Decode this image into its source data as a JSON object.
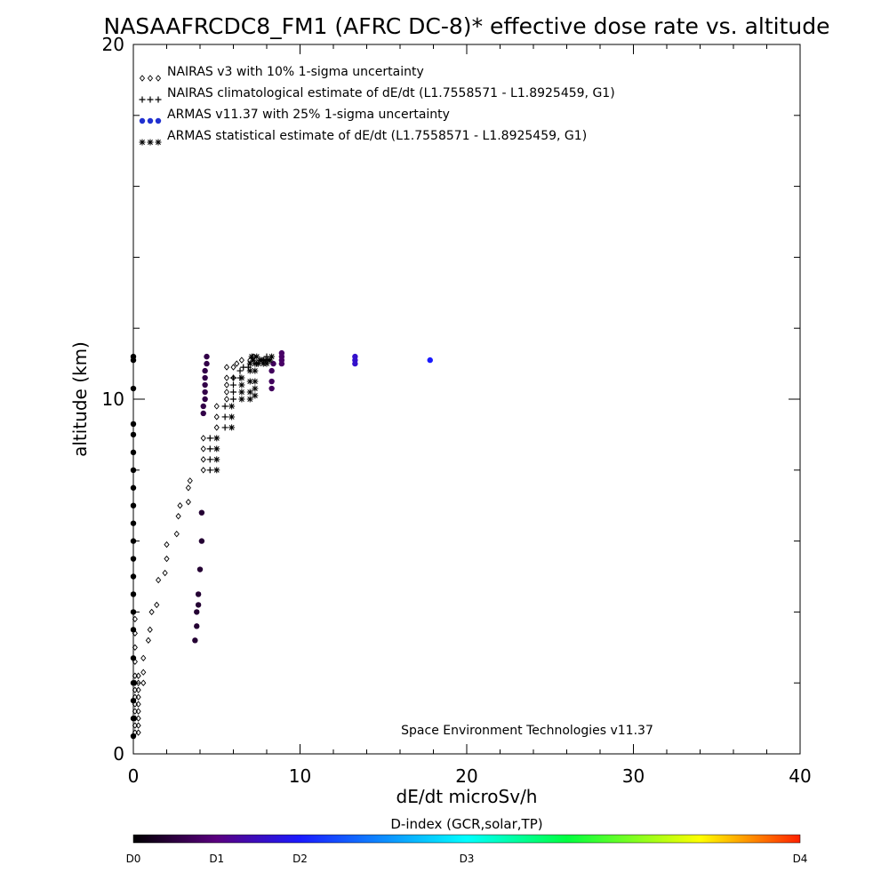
{
  "chart_data": {
    "type": "scatter",
    "title": "NASAAFRCDC8_FM1 (AFRC DC-8)* effective dose rate vs. altitude",
    "xlabel": "dE/dt microSv/h",
    "ylabel": "altitude (km)",
    "xlim": [
      0,
      40
    ],
    "ylim": [
      0,
      20
    ],
    "x_ticks": [
      "0",
      "10",
      "20",
      "30",
      "40"
    ],
    "y_ticks": [
      "0",
      "10",
      "20"
    ],
    "grid": false,
    "legend_position": "top-left",
    "annotation": "Space Environment Technologies v11.37",
    "colorbar": {
      "title": "D-index (GCR,solar,TP)",
      "labels": [
        {
          "text": "D0",
          "pos": 0.0
        },
        {
          "text": "D1",
          "pos": 0.125
        },
        {
          "text": "D2",
          "pos": 0.25
        },
        {
          "text": "D3",
          "pos": 0.5
        },
        {
          "text": "D4",
          "pos": 1.0
        }
      ]
    },
    "series": [
      {
        "name": "NAIRAS v3 with 10% 1-sigma uncertainty",
        "marker": "diamond",
        "color": "#000000",
        "points": [
          [
            0.1,
            0.6
          ],
          [
            0.1,
            0.8
          ],
          [
            0.1,
            1.0
          ],
          [
            0.1,
            1.2
          ],
          [
            0.1,
            1.4
          ],
          [
            0.1,
            1.6
          ],
          [
            0.1,
            1.8
          ],
          [
            0.1,
            2.0
          ],
          [
            0.1,
            2.2
          ],
          [
            0.1,
            2.6
          ],
          [
            0.1,
            3.0
          ],
          [
            0.1,
            3.4
          ],
          [
            0.1,
            3.8
          ],
          [
            0.3,
            0.6
          ],
          [
            0.3,
            0.8
          ],
          [
            0.3,
            1.0
          ],
          [
            0.3,
            1.2
          ],
          [
            0.3,
            1.4
          ],
          [
            0.3,
            1.6
          ],
          [
            0.3,
            1.8
          ],
          [
            0.3,
            2.0
          ],
          [
            0.3,
            2.2
          ],
          [
            0.6,
            2.0
          ],
          [
            0.6,
            2.3
          ],
          [
            0.6,
            2.7
          ],
          [
            0.9,
            3.2
          ],
          [
            1.0,
            3.5
          ],
          [
            1.1,
            4.0
          ],
          [
            1.4,
            4.2
          ],
          [
            1.5,
            4.9
          ],
          [
            1.9,
            5.1
          ],
          [
            2.0,
            5.5
          ],
          [
            2.0,
            5.9
          ],
          [
            2.6,
            6.2
          ],
          [
            2.7,
            6.7
          ],
          [
            2.8,
            7.0
          ],
          [
            3.3,
            7.1
          ],
          [
            3.3,
            7.5
          ],
          [
            3.4,
            7.7
          ],
          [
            4.2,
            8.0
          ],
          [
            4.2,
            8.3
          ],
          [
            4.2,
            8.6
          ],
          [
            4.2,
            8.9
          ],
          [
            5.0,
            9.2
          ],
          [
            5.0,
            9.5
          ],
          [
            5.0,
            9.8
          ],
          [
            5.6,
            10.0
          ],
          [
            5.6,
            10.2
          ],
          [
            5.6,
            10.4
          ],
          [
            5.6,
            10.6
          ],
          [
            5.6,
            10.9
          ],
          [
            6.0,
            10.6
          ],
          [
            6.0,
            10.9
          ],
          [
            6.2,
            11.0
          ],
          [
            6.5,
            11.1
          ],
          [
            7.0,
            11.1
          ],
          [
            7.2,
            11.2
          ]
        ]
      },
      {
        "name": "NAIRAS climatological estimate of dE/dt (L1.7558571 - L1.8925459, G1)",
        "marker": "plus",
        "color": "#000000",
        "points": [
          [
            4.6,
            8.0
          ],
          [
            4.6,
            8.3
          ],
          [
            4.6,
            8.6
          ],
          [
            4.6,
            8.9
          ],
          [
            5.5,
            9.2
          ],
          [
            5.5,
            9.5
          ],
          [
            5.5,
            9.8
          ],
          [
            6.0,
            10.0
          ],
          [
            6.0,
            10.2
          ],
          [
            6.0,
            10.4
          ],
          [
            6.0,
            10.6
          ],
          [
            6.4,
            10.6
          ],
          [
            6.4,
            10.8
          ],
          [
            6.6,
            10.9
          ],
          [
            6.9,
            10.9
          ],
          [
            7.4,
            11.0
          ],
          [
            7.6,
            11.1
          ],
          [
            7.8,
            11.1
          ],
          [
            8.0,
            11.2
          ]
        ]
      },
      {
        "name": "ARMAS v11.37 with 25% 1-sigma uncertainty",
        "marker": "dot",
        "color": "#2030d0",
        "points": [
          [
            0.0,
            10.3,
            0.0
          ],
          [
            0.0,
            11.1,
            0.0
          ],
          [
            0.0,
            11.2,
            0.0
          ],
          [
            0.0,
            0.5,
            0.0
          ],
          [
            0.0,
            1.0,
            0.0
          ],
          [
            0.0,
            1.5,
            0.0
          ],
          [
            0.0,
            2.0,
            0.0
          ],
          [
            0.0,
            2.7,
            0.0
          ],
          [
            0.0,
            3.5,
            0.0
          ],
          [
            0.0,
            4.0,
            0.0
          ],
          [
            0.0,
            4.5,
            0.0
          ],
          [
            0.0,
            5.0,
            0.0
          ],
          [
            0.0,
            5.5,
            0.0
          ],
          [
            0.0,
            6.0,
            0.0
          ],
          [
            0.0,
            6.5,
            0.0
          ],
          [
            0.0,
            7.0,
            0.0
          ],
          [
            0.0,
            7.5,
            0.0
          ],
          [
            0.0,
            8.0,
            0.0
          ],
          [
            0.0,
            8.5,
            0.0
          ],
          [
            0.0,
            9.0,
            0.0
          ],
          [
            0.0,
            9.3,
            0.0
          ],
          [
            3.7,
            3.2,
            0.05
          ],
          [
            3.8,
            3.6,
            0.05
          ],
          [
            3.8,
            4.0,
            0.05
          ],
          [
            3.9,
            4.2,
            0.05
          ],
          [
            3.9,
            4.5,
            0.05
          ],
          [
            4.0,
            5.2,
            0.05
          ],
          [
            4.1,
            6.0,
            0.05
          ],
          [
            4.1,
            6.8,
            0.05
          ],
          [
            4.2,
            9.6,
            0.07
          ],
          [
            4.2,
            9.8,
            0.07
          ],
          [
            4.3,
            10.0,
            0.07
          ],
          [
            4.3,
            10.2,
            0.07
          ],
          [
            4.3,
            10.4,
            0.07
          ],
          [
            4.3,
            10.6,
            0.07
          ],
          [
            4.3,
            10.8,
            0.07
          ],
          [
            4.4,
            11.0,
            0.07
          ],
          [
            4.4,
            11.2,
            0.07
          ],
          [
            8.3,
            10.3,
            0.09
          ],
          [
            8.3,
            10.5,
            0.09
          ],
          [
            8.3,
            10.8,
            0.09
          ],
          [
            8.4,
            11.0,
            0.09
          ],
          [
            8.9,
            11.0,
            0.1
          ],
          [
            8.9,
            11.1,
            0.1
          ],
          [
            8.9,
            11.2,
            0.1
          ],
          [
            8.9,
            11.3,
            0.1
          ],
          [
            13.3,
            11.0,
            0.2
          ],
          [
            13.3,
            11.1,
            0.2
          ],
          [
            13.3,
            11.2,
            0.2
          ],
          [
            17.8,
            11.1,
            0.25
          ]
        ]
      },
      {
        "name": "ARMAS statistical estimate of dE/dt (L1.7558571 - L1.8925459, G1)",
        "marker": "asterisk",
        "color": "#000000",
        "points": [
          [
            5.0,
            8.0
          ],
          [
            5.0,
            8.3
          ],
          [
            5.0,
            8.6
          ],
          [
            5.0,
            8.9
          ],
          [
            5.9,
            9.2
          ],
          [
            5.9,
            9.5
          ],
          [
            5.9,
            9.8
          ],
          [
            6.5,
            10.0
          ],
          [
            6.5,
            10.2
          ],
          [
            6.5,
            10.4
          ],
          [
            6.5,
            10.6
          ],
          [
            7.0,
            10.0
          ],
          [
            7.0,
            10.2
          ],
          [
            7.0,
            10.5
          ],
          [
            7.0,
            10.8
          ],
          [
            7.0,
            11.0
          ],
          [
            7.3,
            10.1
          ],
          [
            7.3,
            10.3
          ],
          [
            7.3,
            10.5
          ],
          [
            7.3,
            10.8
          ],
          [
            7.3,
            11.0
          ],
          [
            7.5,
            11.0
          ],
          [
            7.6,
            11.1
          ],
          [
            7.7,
            11.1
          ],
          [
            7.8,
            11.0
          ],
          [
            7.9,
            11.1
          ],
          [
            8.0,
            11.0
          ],
          [
            8.1,
            11.1
          ],
          [
            8.2,
            11.1
          ],
          [
            8.3,
            11.2
          ],
          [
            7.1,
            11.2
          ],
          [
            7.2,
            11.1
          ],
          [
            7.4,
            11.2
          ]
        ]
      }
    ]
  }
}
